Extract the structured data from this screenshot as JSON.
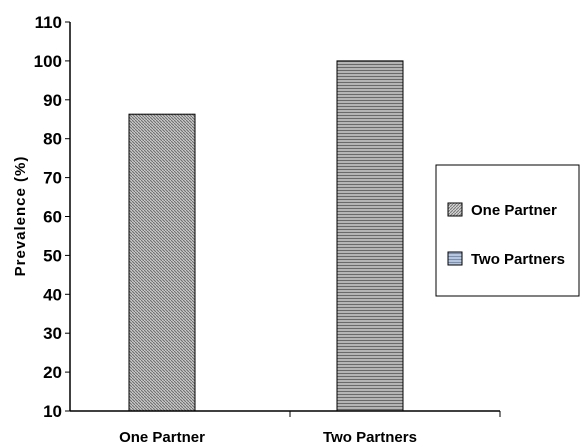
{
  "chart_data": {
    "type": "bar",
    "categories": [
      "One Partner",
      "Two Partners"
    ],
    "series": [
      {
        "name": "One Partner",
        "values": [
          86.3,
          null
        ]
      },
      {
        "name": "Two Partners",
        "values": [
          null,
          100
        ]
      }
    ],
    "values": [
      86.3,
      100
    ],
    "xlabel": "",
    "ylabel": "Prevalence (%)",
    "ylim": [
      10,
      110
    ],
    "yticks": [
      "10",
      "20",
      "30",
      "40",
      "50",
      "60",
      "70",
      "80",
      "90",
      "100",
      "110"
    ],
    "grid": false,
    "legend_position": "right",
    "legend": [
      "One Partner",
      "Two Partners"
    ],
    "colors": {
      "one_partner_bar": "#9a9a9a",
      "two_partners_bar": "#8a8a8a",
      "legend_one_partner": "#b9b9b9",
      "legend_two_partners": "#9fb4d1",
      "axis": "#000000"
    }
  }
}
